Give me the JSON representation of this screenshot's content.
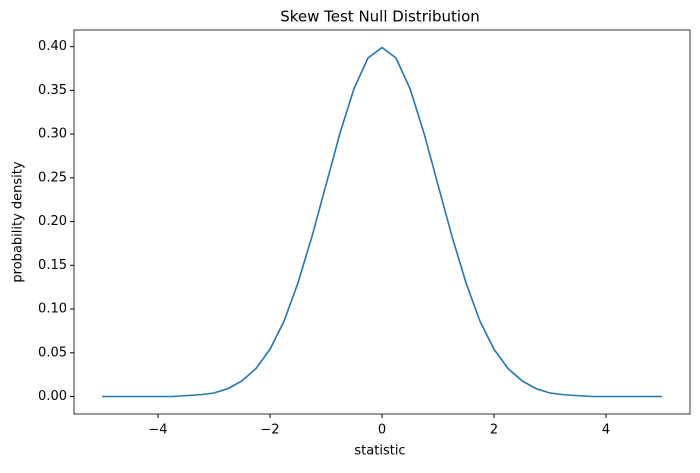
{
  "chart_data": {
    "type": "line",
    "title": "Skew Test Null Distribution",
    "xlabel": "statistic",
    "ylabel": "probability density",
    "x": [
      -5,
      -4.75,
      -4.5,
      -4.25,
      -4,
      -3.75,
      -3.5,
      -3.25,
      -3,
      -2.75,
      -2.5,
      -2.25,
      -2,
      -1.75,
      -1.5,
      -1.25,
      -1,
      -0.75,
      -0.5,
      -0.25,
      0,
      0.25,
      0.5,
      0.75,
      1,
      1.25,
      1.5,
      1.75,
      2,
      2.25,
      2.5,
      2.75,
      3,
      3.25,
      3.5,
      3.75,
      4,
      4.25,
      4.5,
      4.75,
      5
    ],
    "series": [
      {
        "name": "density",
        "color": "#1f77b4",
        "values": [
          0,
          0,
          0,
          0,
          0,
          0,
          0.001,
          0.002,
          0.004,
          0.009,
          0.018,
          0.032,
          0.054,
          0.086,
          0.13,
          0.183,
          0.242,
          0.301,
          0.352,
          0.387,
          0.399,
          0.387,
          0.352,
          0.301,
          0.242,
          0.183,
          0.13,
          0.086,
          0.054,
          0.032,
          0.018,
          0.009,
          0.004,
          0.002,
          0.001,
          0,
          0,
          0,
          0,
          0,
          0
        ]
      }
    ],
    "xlim": [
      -5.5,
      5.5
    ],
    "xticks": [
      {
        "value": -4,
        "label": "−4"
      },
      {
        "value": -2,
        "label": "−2"
      },
      0,
      2,
      4
    ],
    "ylim": [
      -0.02,
      0.419
    ],
    "yticks": [
      {
        "value": 0,
        "label": "0.00"
      },
      {
        "value": 0.05,
        "label": "0.05"
      },
      {
        "value": 0.1,
        "label": "0.10"
      },
      {
        "value": 0.15,
        "label": "0.15"
      },
      {
        "value": 0.2,
        "label": "0.20"
      },
      {
        "value": 0.25,
        "label": "0.25"
      },
      {
        "value": 0.3,
        "label": "0.30"
      },
      {
        "value": 0.35,
        "label": "0.35"
      },
      {
        "value": 0.4,
        "label": "0.40"
      }
    ],
    "grid": false
  }
}
